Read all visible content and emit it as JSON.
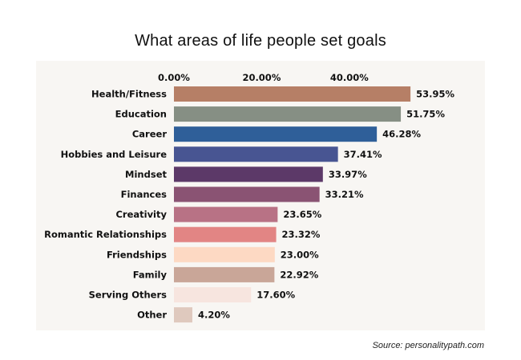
{
  "chart_data": {
    "type": "bar",
    "orientation": "horizontal",
    "title": "What areas of life  people set goals",
    "xlabel": "",
    "ylabel": "",
    "xlim": [
      0,
      60
    ],
    "x_ticks": [
      "0.00%",
      "20.00%",
      "40.00%"
    ],
    "x_tick_values": [
      0,
      20,
      40
    ],
    "x_axis_position": "top",
    "grid": false,
    "categories": [
      "Health/Fitness",
      "Education",
      "Career",
      "Hobbies and Leisure",
      "Mindset",
      "Finances",
      "Creativity",
      "Romantic Relationships",
      "Friendships",
      "Family",
      "Serving Others",
      "Other"
    ],
    "values": [
      53.95,
      51.75,
      46.28,
      37.41,
      33.97,
      33.21,
      23.65,
      23.32,
      23.0,
      22.92,
      17.6,
      4.2
    ],
    "data_labels": [
      "53.95%",
      "51.75%",
      "46.28%",
      "37.41%",
      "33.97%",
      "33.21%",
      "23.65%",
      "23.32%",
      "23.00%",
      "22.92%",
      "17.60%",
      "4.20%"
    ],
    "colors": [
      "#b67f66",
      "#868f84",
      "#2f5f99",
      "#485592",
      "#5c3968",
      "#8a5373",
      "#b87285",
      "#e28584",
      "#fdd9c3",
      "#c9a698",
      "#f7e5df",
      "#dfc9be"
    ],
    "source": "Source: personalitypath.com"
  }
}
